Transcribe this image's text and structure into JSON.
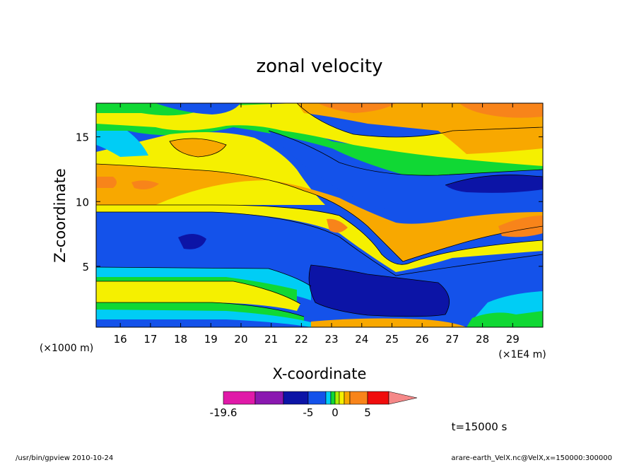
{
  "chart_data": {
    "type": "contour",
    "title": "zonal velocity",
    "xlabel": "X-coordinate",
    "ylabel": "Z-coordinate",
    "x_unit_label": "(×1E4 m)",
    "y_unit_label": "(×1000 m)",
    "xlim": [
      15.2,
      30.0
    ],
    "ylim": [
      0.3,
      17.6
    ],
    "x_ticks": [
      16,
      17,
      18,
      19,
      20,
      21,
      22,
      23,
      24,
      25,
      26,
      27,
      28,
      29
    ],
    "y_ticks": [
      5,
      10,
      15
    ],
    "colorbar": {
      "levels": [
        -19.6,
        -15,
        -10,
        -5,
        -3,
        -1,
        0,
        1,
        2,
        3,
        5,
        8,
        11,
        15
      ],
      "labels": [
        -19.6,
        -5,
        0,
        5
      ],
      "colors": [
        "#e019a8",
        "#8a18b0",
        "#0c14a6",
        "#1452ea",
        "#00cdf5",
        "#10d834",
        "#aaf000",
        "#f5f000",
        "#f8a800",
        "#f8841a",
        "#f00c0c",
        "#f58888"
      ]
    },
    "time_label": "t=15000 s",
    "footer_left": "/usr/bin/gpview   2010-10-24",
    "footer_right": "arare-earth_VelX.nc@VelX,x=150000:300000"
  }
}
